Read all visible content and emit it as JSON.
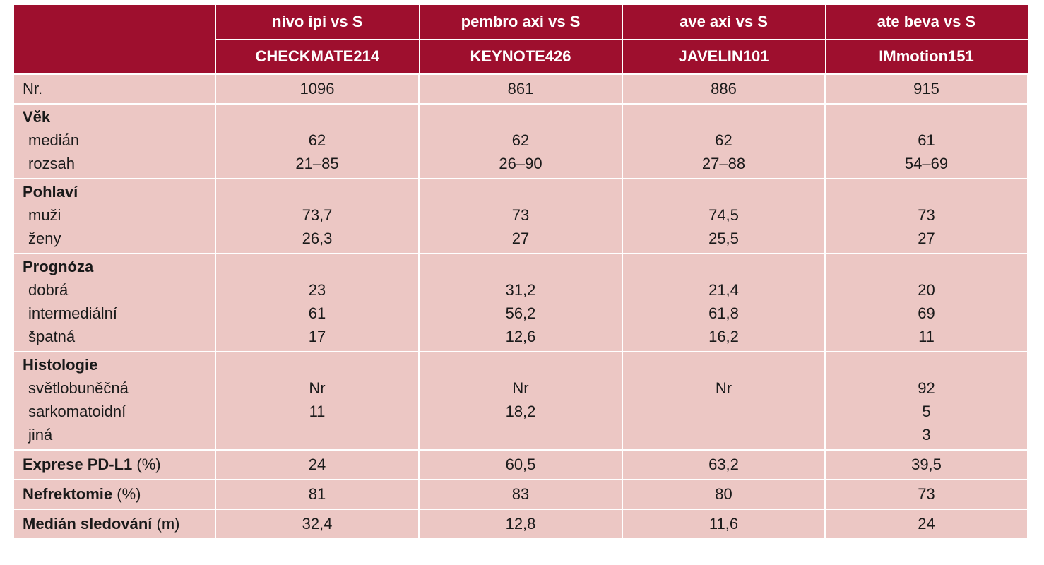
{
  "header": {
    "columns": [
      {
        "name": "nivo ipi vs S",
        "trial": "CHECKMATE214"
      },
      {
        "name": "pembro axi vs S",
        "trial": "KEYNOTE426"
      },
      {
        "name": "ave axi vs S",
        "trial": "JAVELIN101"
      },
      {
        "name": "ate beva vs S",
        "trial": "IMmotion151"
      }
    ]
  },
  "rows": {
    "nr": {
      "label": "Nr.",
      "values": [
        "1096",
        "861",
        "886",
        "915"
      ]
    },
    "vek": {
      "label": "Věk",
      "sub": [
        {
          "label": "medián",
          "values": [
            "62",
            "62",
            "62",
            "61"
          ]
        },
        {
          "label": "rozsah",
          "values": [
            "21–85",
            "26–90",
            "27–88",
            "54–69"
          ]
        }
      ]
    },
    "pohlavi": {
      "label": "Pohlaví",
      "sub": [
        {
          "label": "muži",
          "values": [
            "73,7",
            "73",
            "74,5",
            "73"
          ]
        },
        {
          "label": "ženy",
          "values": [
            "26,3",
            "27",
            "25,5",
            "27"
          ]
        }
      ]
    },
    "prognoza": {
      "label": "Prognóza",
      "sub": [
        {
          "label": "dobrá",
          "values": [
            "23",
            "31,2",
            "21,4",
            "20"
          ]
        },
        {
          "label": "intermediální",
          "values": [
            "61",
            "56,2",
            "61,8",
            "69"
          ]
        },
        {
          "label": "špatná",
          "values": [
            "17",
            "12,6",
            "16,2",
            "11"
          ]
        }
      ]
    },
    "histologie": {
      "label": "Histologie",
      "sub": [
        {
          "label": "světlobuněčná",
          "values": [
            "Nr",
            "Nr",
            "Nr",
            "92"
          ]
        },
        {
          "label": "sarkomatoidní",
          "values": [
            "11",
            "18,2",
            "",
            "5"
          ]
        },
        {
          "label": "jiná",
          "values": [
            "",
            "",
            "",
            "3"
          ]
        }
      ]
    },
    "pdl1": {
      "label": "Exprese PD-L1",
      "unit": "(%)",
      "values": [
        "24",
        "60,5",
        "63,2",
        "39,5"
      ]
    },
    "nefrektomie": {
      "label": "Nefrektomie",
      "unit": "(%)",
      "values": [
        "81",
        "83",
        "80",
        "73"
      ]
    },
    "sledovani": {
      "label": "Medián sledování",
      "unit": "(m)",
      "values": [
        "32,4",
        "12,8",
        "11,6",
        "24"
      ]
    }
  }
}
